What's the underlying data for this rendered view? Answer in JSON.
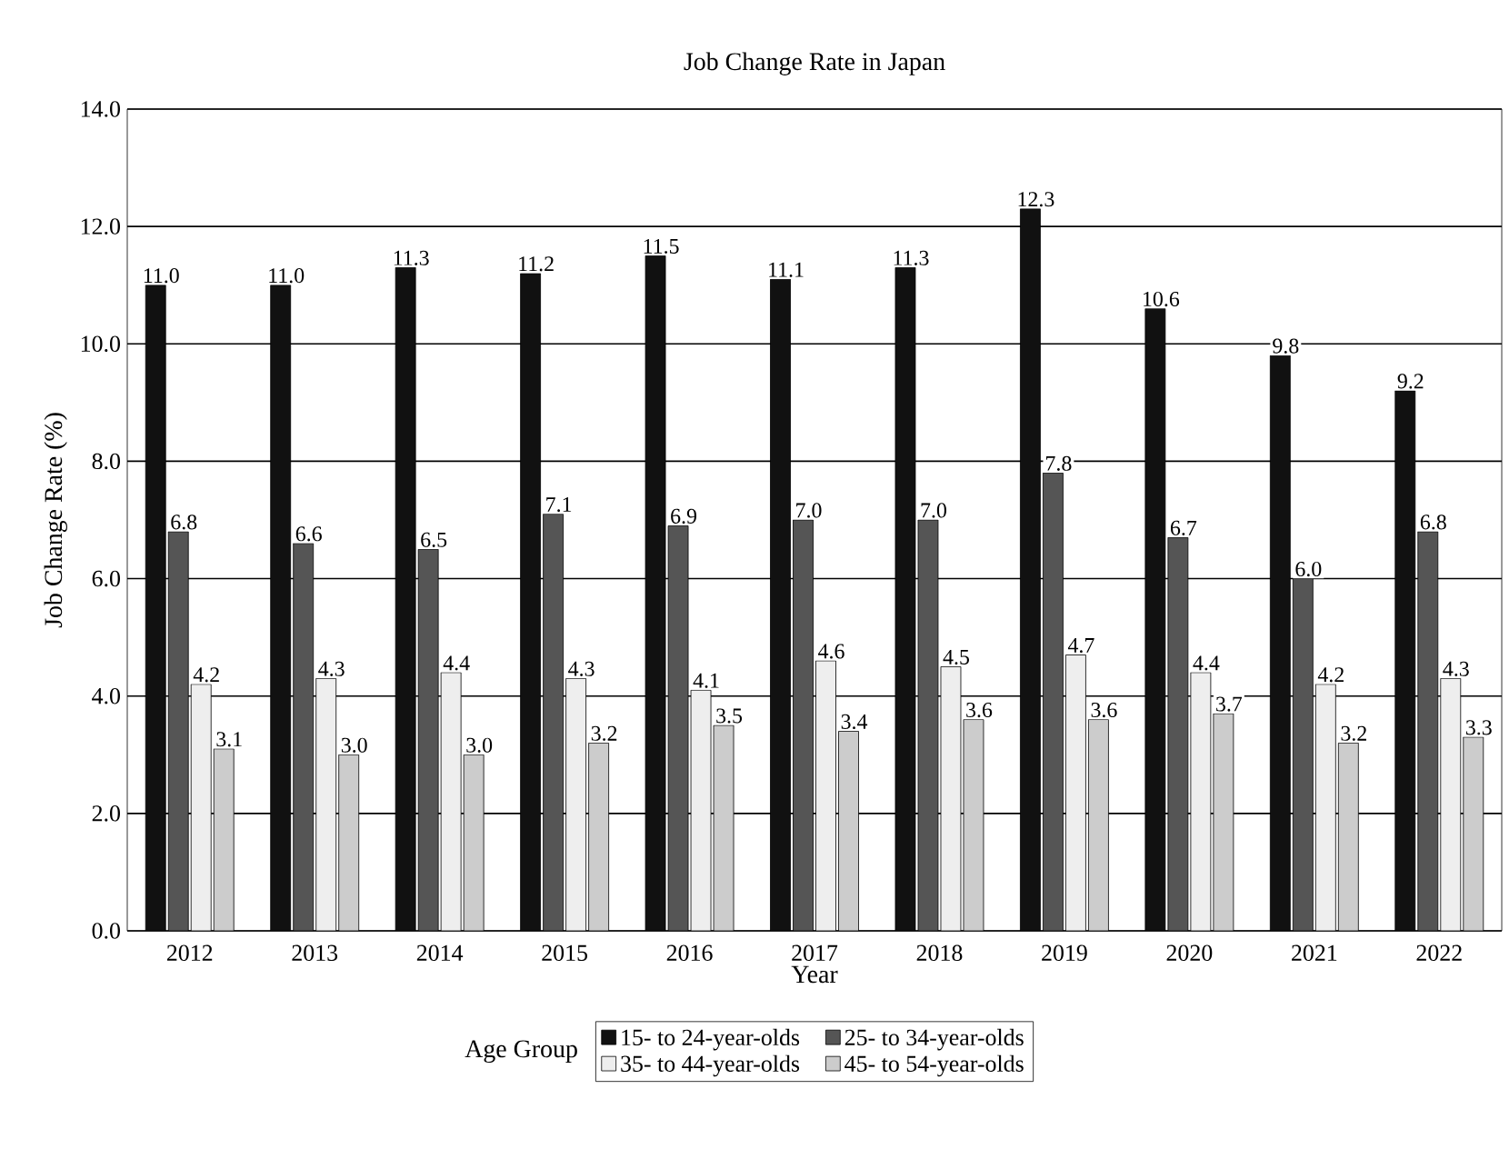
{
  "chart_data": {
    "type": "bar",
    "title": "Job Change Rate in Japan",
    "xlabel": "Year",
    "ylabel": "Job Change Rate (%)",
    "legend_title": "Age Group",
    "categories": [
      "2012",
      "2013",
      "2014",
      "2015",
      "2016",
      "2017",
      "2018",
      "2019",
      "2020",
      "2021",
      "2022"
    ],
    "series": [
      {
        "name": "15- to 24-year-olds",
        "color": "#111111",
        "values": [
          11.0,
          11.0,
          11.3,
          11.2,
          11.5,
          11.1,
          11.3,
          12.3,
          10.6,
          9.8,
          9.2
        ],
        "value_labels": [
          "11.0",
          "11.0",
          "11.3",
          "11.2",
          "11.5",
          "11.1",
          "11.3",
          "12.3",
          "10.6",
          "9.8",
          "9.2"
        ]
      },
      {
        "name": "25- to 34-year-olds",
        "color": "#555555",
        "values": [
          6.8,
          6.6,
          6.5,
          7.1,
          6.9,
          7.0,
          7.0,
          7.8,
          6.7,
          6.0,
          6.8
        ],
        "value_labels": [
          "6.8",
          "6.6",
          "6.5",
          "7.1",
          "6.9",
          "7.0",
          "7.0",
          "7.8",
          "6.7",
          "6.0",
          "6.8"
        ]
      },
      {
        "name": "35- to 44-year-olds",
        "color": "#eeeeee",
        "values": [
          4.2,
          4.3,
          4.4,
          4.3,
          4.1,
          4.6,
          4.5,
          4.7,
          4.4,
          4.2,
          4.3
        ],
        "value_labels": [
          "4.2",
          "4.3",
          "4.4",
          "4.3",
          "4.1",
          "4.6",
          "4.5",
          "4.7",
          "4.4",
          "4.2",
          "4.3"
        ]
      },
      {
        "name": "45- to 54-year-olds",
        "color": "#cccccc",
        "values": [
          3.1,
          3.0,
          3.0,
          3.2,
          3.5,
          3.4,
          3.6,
          3.6,
          3.7,
          3.2,
          3.3
        ],
        "value_labels": [
          "3.1",
          "3.0",
          "3.0",
          "3.2",
          "3.5",
          "3.4",
          "3.6",
          "3.6",
          "3.7",
          "3.2",
          "3.3"
        ]
      }
    ],
    "ylim": [
      0,
      14
    ],
    "yticks": [
      {
        "value": 0,
        "label": "0.0"
      },
      {
        "value": 2,
        "label": "2.0"
      },
      {
        "value": 4,
        "label": "4.0"
      },
      {
        "value": 6,
        "label": "6.0"
      },
      {
        "value": 8,
        "label": "8.0"
      },
      {
        "value": 10,
        "label": "10.0"
      },
      {
        "value": 12,
        "label": "12.0"
      },
      {
        "value": 14,
        "label": "14.0"
      }
    ],
    "grid": "y",
    "legend": "bottom"
  }
}
